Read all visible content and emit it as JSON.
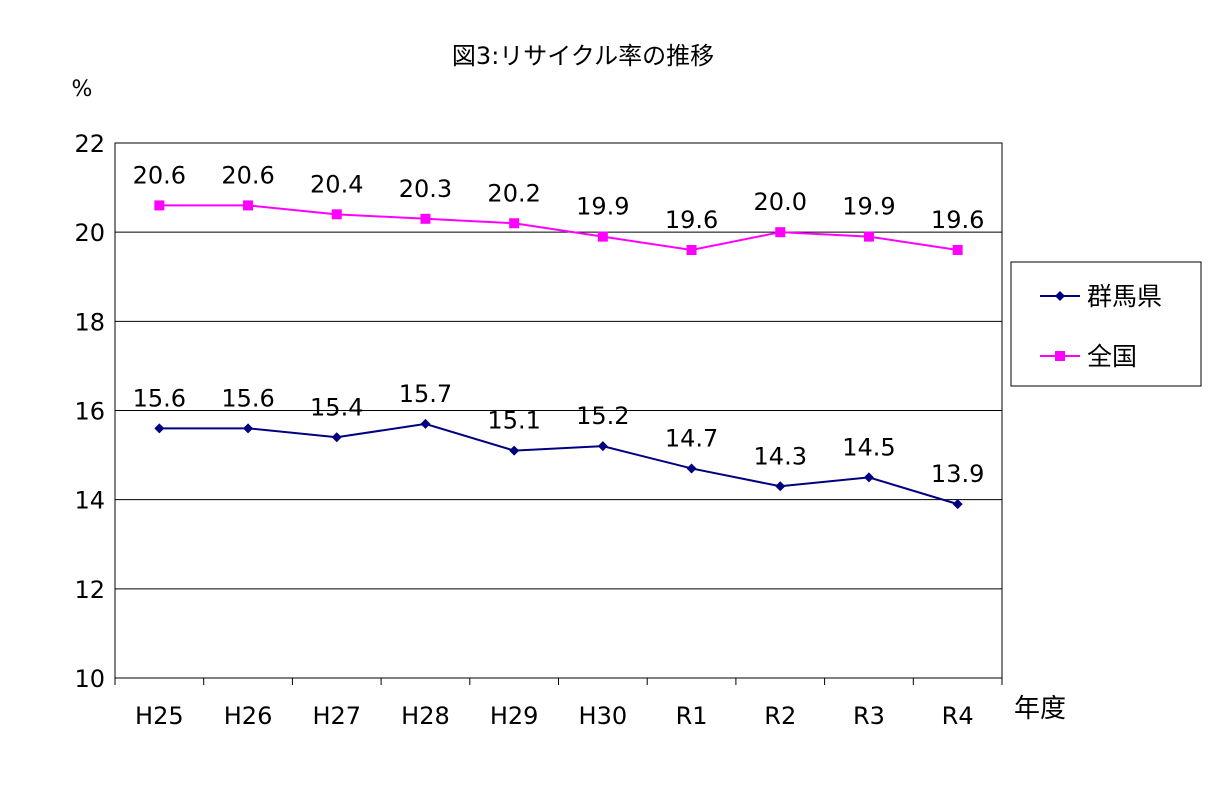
{
  "chart_data": {
    "type": "line",
    "title": "図3:リサイクル率の推移",
    "xlabel": "年度",
    "ylabel": "%",
    "categories": [
      "H25",
      "H26",
      "H27",
      "H28",
      "H29",
      "H30",
      "R1",
      "R2",
      "R3",
      "R4"
    ],
    "ylim": [
      10,
      22
    ],
    "yticks": [
      10,
      12,
      14,
      16,
      18,
      20,
      22
    ],
    "grid": true,
    "legend_position": "right",
    "series": [
      {
        "name": "群馬県",
        "color": "#000080",
        "marker": "diamond",
        "values": [
          15.6,
          15.6,
          15.4,
          15.7,
          15.1,
          15.2,
          14.7,
          14.3,
          14.5,
          13.9
        ]
      },
      {
        "name": "全国",
        "color": "#FF00FF",
        "marker": "square",
        "values": [
          20.6,
          20.6,
          20.4,
          20.3,
          20.2,
          19.9,
          19.6,
          20.0,
          19.9,
          19.6
        ]
      }
    ]
  }
}
